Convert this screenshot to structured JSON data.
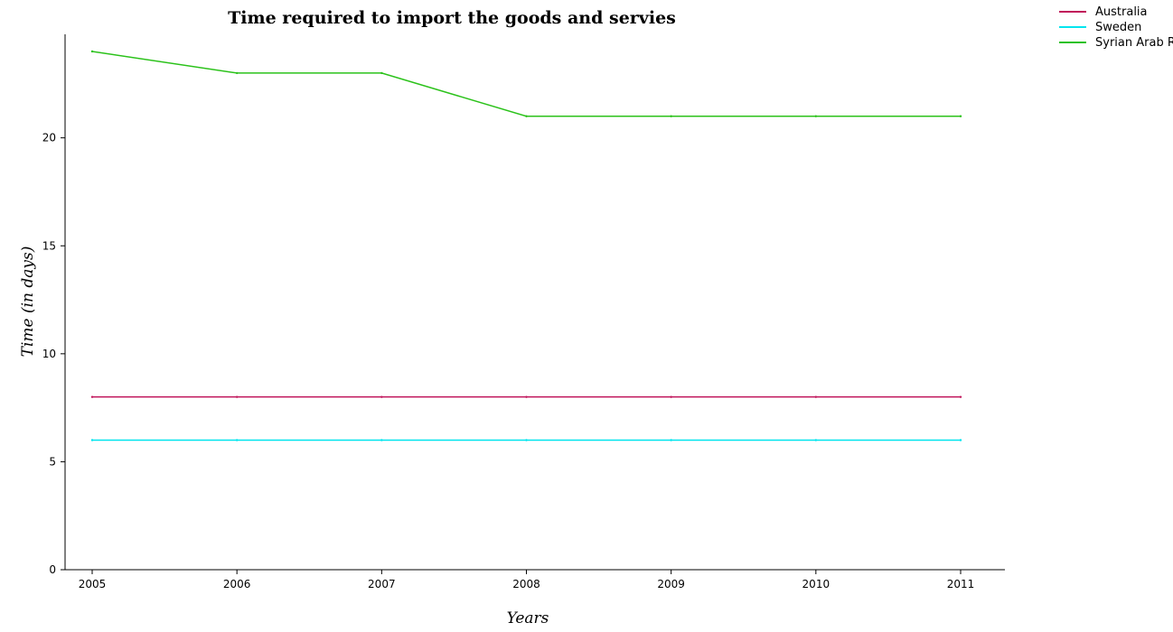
{
  "chart_data": {
    "type": "line",
    "title": "Time required to import the goods and servies",
    "xlabel": "Years",
    "ylabel": "Time (in days)",
    "x": [
      "2005",
      "2006",
      "2007",
      "2008",
      "2009",
      "2010",
      "2011"
    ],
    "ylim": [
      0,
      25
    ],
    "yticks": [
      0,
      5,
      10,
      15,
      20
    ],
    "grid": false,
    "legend_position": "top-right",
    "series": [
      {
        "name": "Australia",
        "color": "#c0145a",
        "values": [
          8,
          8,
          8,
          8,
          8,
          8,
          8
        ]
      },
      {
        "name": "Sweden",
        "color": "#00e5ee",
        "values": [
          6,
          6,
          6,
          6,
          6,
          6,
          6
        ]
      },
      {
        "name": "Syrian Arab Republic",
        "color": "#2bc21a",
        "values": [
          24,
          23,
          23,
          21,
          21,
          21,
          21
        ]
      }
    ]
  }
}
